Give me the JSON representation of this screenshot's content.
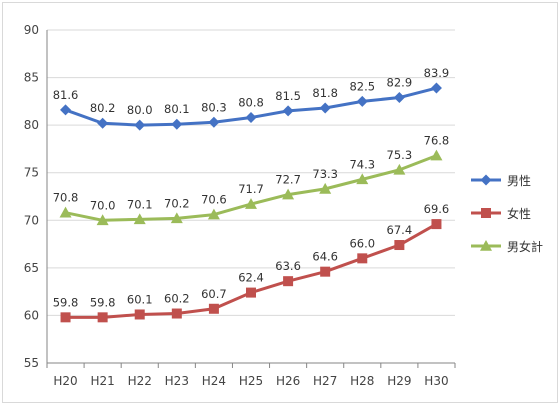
{
  "chart_data": {
    "type": "line",
    "categories": [
      "H20",
      "H21",
      "H22",
      "H23",
      "H24",
      "H25",
      "H26",
      "H27",
      "H28",
      "H29",
      "H30"
    ],
    "ylim": [
      55,
      90
    ],
    "yticks": [
      55,
      60,
      65,
      70,
      75,
      80,
      85,
      90
    ],
    "grid": true,
    "legend_position": "right",
    "series": [
      {
        "name": "男性",
        "color": "#4472c4",
        "marker": "diamond",
        "values": [
          81.6,
          80.2,
          80.0,
          80.1,
          80.3,
          80.8,
          81.5,
          81.8,
          82.5,
          82.9,
          83.9
        ]
      },
      {
        "name": "女性",
        "color": "#c0504d",
        "marker": "square",
        "values": [
          59.8,
          59.8,
          60.1,
          60.2,
          60.7,
          62.4,
          63.6,
          64.6,
          66.0,
          67.4,
          69.6
        ]
      },
      {
        "name": "男女計",
        "color": "#9bbb59",
        "marker": "triangle",
        "values": [
          70.8,
          70.0,
          70.1,
          70.2,
          70.6,
          71.7,
          72.7,
          73.3,
          74.3,
          75.3,
          76.8
        ]
      }
    ]
  }
}
